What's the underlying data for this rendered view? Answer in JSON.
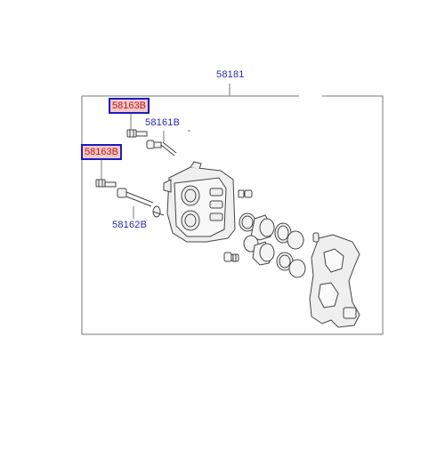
{
  "diagram": {
    "assembly_number": "58181",
    "parts": {
      "guide_bolt_upper": "58163B",
      "guide_bolt_lower": "58163B",
      "guide_pin_upper": "58161B",
      "guide_pin_lower": "58162B"
    }
  },
  "colors": {
    "label_text": "#2a2ab0",
    "highlight_text": "#c0181c",
    "highlight_fill": "#f2c8c8",
    "highlight_border": "#1c1cc0",
    "line": "#555555"
  }
}
